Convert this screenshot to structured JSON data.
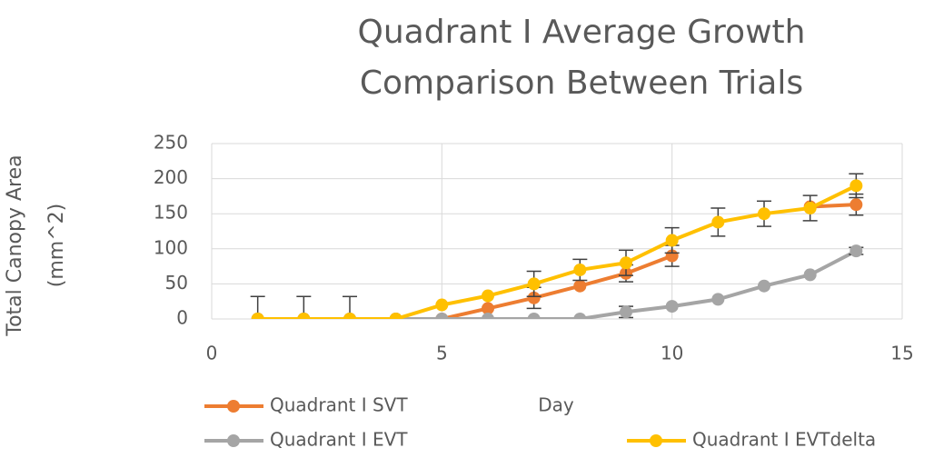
{
  "chart_data": {
    "type": "line",
    "title": "Quadrant I Average Growth Comparison Between Trials",
    "xlabel": "Day",
    "ylabel": "Total Canopy Area (mm^2)",
    "x": [
      1,
      2,
      3,
      4,
      5,
      6,
      7,
      8,
      9,
      10,
      11,
      12,
      13,
      14
    ],
    "series": [
      {
        "name": "Quadrant I SVT",
        "color": "#ed7d31",
        "values": [
          0,
          0,
          0,
          0,
          0,
          15,
          30,
          47,
          65,
          90,
          null,
          null,
          160,
          163
        ],
        "errors": [
          null,
          null,
          null,
          null,
          null,
          null,
          15,
          null,
          12,
          15,
          null,
          null,
          null,
          15
        ]
      },
      {
        "name": "Quadrant I EVT",
        "color": "#a5a5a5",
        "values": [
          0,
          0,
          0,
          0,
          0,
          0,
          0,
          0,
          10,
          18,
          28,
          47,
          63,
          97
        ],
        "errors": [
          32,
          32,
          32,
          null,
          null,
          null,
          null,
          null,
          8,
          null,
          null,
          null,
          null,
          5
        ]
      },
      {
        "name": "Quadrant I EVTdelta",
        "color": "#ffc000",
        "values": [
          0,
          0,
          0,
          0,
          20,
          33,
          50,
          70,
          80,
          112,
          138,
          150,
          158,
          190
        ],
        "errors": [
          null,
          null,
          null,
          null,
          null,
          null,
          18,
          15,
          18,
          18,
          20,
          18,
          18,
          17
        ]
      }
    ],
    "xlim": [
      0,
      15
    ],
    "xticks": [
      0,
      5,
      10,
      15
    ],
    "ylim": [
      0,
      250
    ],
    "yticks": [
      0,
      50,
      100,
      150,
      200,
      250
    ],
    "grid": true,
    "legend": "bottom"
  }
}
